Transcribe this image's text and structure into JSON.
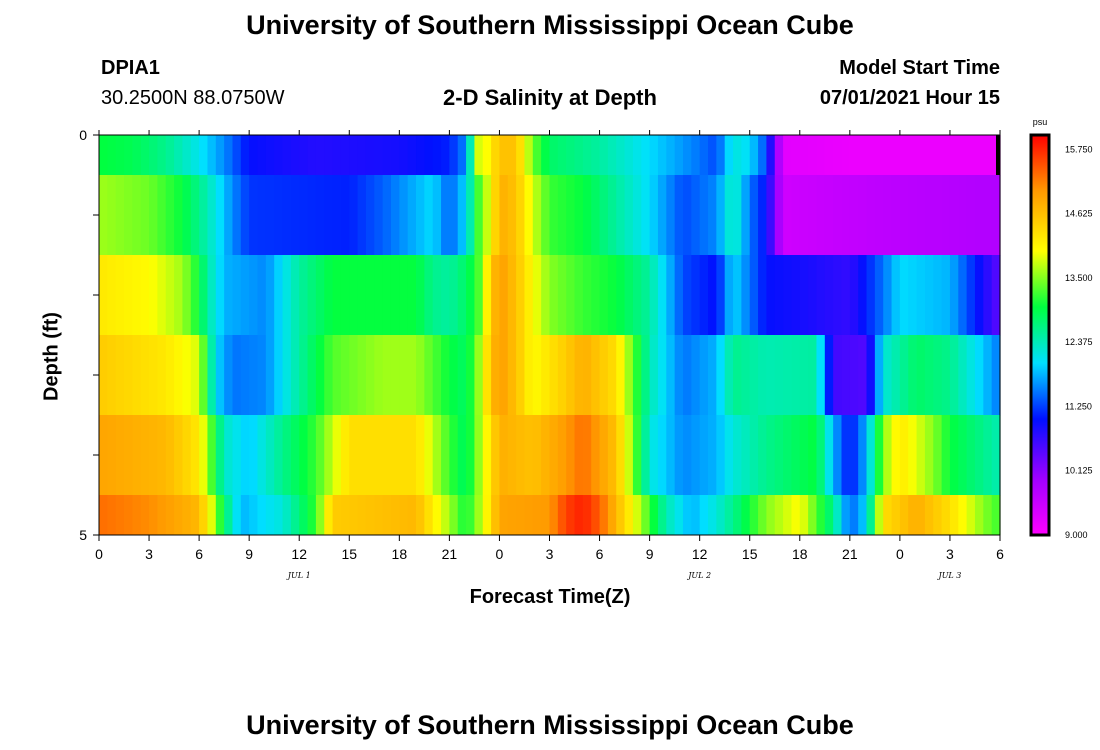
{
  "header": {
    "title": "University of Southern Mississippi Ocean Cube",
    "station": "DPIA1",
    "coords": "30.2500N  88.0750W",
    "subtitle": "2-D Salinity at Depth",
    "model_label": "Model Start Time",
    "model_time": "07/01/2021 Hour 15"
  },
  "footer": {
    "title": "University of Southern Mississippi Ocean Cube"
  },
  "chart_data": {
    "type": "heatmap",
    "title": "2-D Salinity at Depth",
    "xlabel": "Forecast Time(Z)",
    "ylabel": "Depth (ft)",
    "ylim": [
      0,
      5
    ],
    "y_ticks": [
      "0",
      "5"
    ],
    "x_hours_range": [
      0,
      54
    ],
    "x_ticks": [
      "0",
      "3",
      "6",
      "9",
      "12",
      "15",
      "18",
      "21",
      "0",
      "3",
      "6",
      "9",
      "12",
      "15",
      "18",
      "21",
      "0",
      "3",
      "6"
    ],
    "month_labels": [
      {
        "label": "JUL 1",
        "hour": 12
      },
      {
        "label": "JUL 2",
        "hour": 36
      },
      {
        "label": "JUL 3",
        "hour": 51
      }
    ],
    "colorbar": {
      "unit": "psu",
      "min": 9.0,
      "max": 16.0,
      "ticks": [
        "15.750",
        "14.625",
        "13.500",
        "12.375",
        "11.250",
        "10.125",
        "9.000"
      ]
    },
    "depth_layers": [
      0.5,
      1.5,
      2.5,
      3.5,
      4.5
    ],
    "rows": [
      {
        "depth": 0.25,
        "points": [
          [
            0,
            13.0
          ],
          [
            2,
            12.9
          ],
          [
            4,
            12.6
          ],
          [
            6,
            12.1
          ],
          [
            7.5,
            11.6
          ],
          [
            9,
            11.0
          ],
          [
            13,
            10.8
          ],
          [
            18,
            10.9
          ],
          [
            21,
            11.1
          ],
          [
            22,
            11.6
          ],
          [
            22.7,
            13.8
          ],
          [
            23.3,
            14.0
          ],
          [
            24,
            14.6
          ],
          [
            25,
            14.6
          ],
          [
            26,
            13.4
          ],
          [
            27,
            12.8
          ],
          [
            30,
            12.5
          ],
          [
            33,
            12.0
          ],
          [
            36,
            11.5
          ],
          [
            37,
            11.3
          ],
          [
            38,
            12.2
          ],
          [
            39,
            12.0
          ],
          [
            40,
            11.3
          ],
          [
            41,
            9.3
          ],
          [
            45,
            9.2
          ],
          [
            50,
            9.2
          ],
          [
            54,
            9.2
          ]
        ]
      },
      {
        "depth": 1.0,
        "points": [
          [
            0,
            13.6
          ],
          [
            3,
            13.4
          ],
          [
            5,
            13.0
          ],
          [
            6.5,
            12.4
          ],
          [
            8,
            11.6
          ],
          [
            9,
            11.2
          ],
          [
            15,
            11.1
          ],
          [
            17,
            11.4
          ],
          [
            20,
            12.0
          ],
          [
            21,
            11.4
          ],
          [
            22,
            12.0
          ],
          [
            22.7,
            13.2
          ],
          [
            23.5,
            14.0
          ],
          [
            24,
            14.8
          ],
          [
            25,
            14.6
          ],
          [
            26,
            13.8
          ],
          [
            27,
            13.2
          ],
          [
            29,
            13.0
          ],
          [
            31,
            12.5
          ],
          [
            33,
            12.0
          ],
          [
            35,
            11.3
          ],
          [
            37,
            11.6
          ],
          [
            38,
            12.4
          ],
          [
            39,
            11.5
          ],
          [
            40,
            11.0
          ],
          [
            41,
            9.5
          ],
          [
            44,
            9.6
          ],
          [
            48,
            9.7
          ],
          [
            54,
            9.8
          ]
        ]
      },
      {
        "depth": 2.0,
        "points": [
          [
            0,
            14.2
          ],
          [
            3,
            14.0
          ],
          [
            5,
            13.6
          ],
          [
            6,
            13.0
          ],
          [
            6.5,
            12.5
          ],
          [
            7.5,
            11.8
          ],
          [
            10,
            11.6
          ],
          [
            12,
            12.5
          ],
          [
            14,
            13.0
          ],
          [
            19,
            13.0
          ],
          [
            20,
            12.6
          ],
          [
            21,
            12.5
          ],
          [
            22,
            12.8
          ],
          [
            22.7,
            13.2
          ],
          [
            23.5,
            14.5
          ],
          [
            24,
            15.0
          ],
          [
            25,
            14.6
          ],
          [
            26,
            14.0
          ],
          [
            27,
            13.5
          ],
          [
            29,
            13.2
          ],
          [
            31,
            13.0
          ],
          [
            33,
            12.5
          ],
          [
            35,
            11.3
          ],
          [
            37,
            11.0
          ],
          [
            38,
            12.0
          ],
          [
            39,
            11.5
          ],
          [
            40,
            11.0
          ],
          [
            42,
            10.9
          ],
          [
            45,
            10.7
          ],
          [
            47,
            11.5
          ],
          [
            48,
            12.0
          ],
          [
            51,
            11.8
          ],
          [
            54,
            10.4
          ]
        ]
      },
      {
        "depth": 3.0,
        "points": [
          [
            0,
            14.5
          ],
          [
            4,
            14.2
          ],
          [
            6,
            13.8
          ],
          [
            7,
            12.0
          ],
          [
            8,
            11.5
          ],
          [
            10,
            11.6
          ],
          [
            12,
            12.5
          ],
          [
            14,
            13.3
          ],
          [
            17,
            13.6
          ],
          [
            19,
            13.6
          ],
          [
            21,
            13.0
          ],
          [
            22,
            12.8
          ],
          [
            22.7,
            13.5
          ],
          [
            23.5,
            14.6
          ],
          [
            24,
            15.0
          ],
          [
            25,
            14.6
          ],
          [
            26,
            14.0
          ],
          [
            28,
            14.5
          ],
          [
            29,
            14.8
          ],
          [
            31,
            14.3
          ],
          [
            33,
            12.4
          ],
          [
            35,
            11.5
          ],
          [
            37,
            11.8
          ],
          [
            38,
            12.6
          ],
          [
            40,
            12.4
          ],
          [
            43,
            12.5
          ],
          [
            44,
            10.6
          ],
          [
            46,
            10.5
          ],
          [
            47,
            12.2
          ],
          [
            49,
            12.8
          ],
          [
            51,
            12.6
          ],
          [
            53,
            11.9
          ],
          [
            54,
            11.5
          ]
        ]
      },
      {
        "depth": 4.0,
        "points": [
          [
            0,
            14.9
          ],
          [
            4,
            14.7
          ],
          [
            6,
            14.2
          ],
          [
            6.8,
            13.2
          ],
          [
            7.5,
            12.3
          ],
          [
            9,
            11.9
          ],
          [
            11,
            12.6
          ],
          [
            13,
            13.2
          ],
          [
            15,
            14.3
          ],
          [
            19,
            14.3
          ],
          [
            21,
            13.2
          ],
          [
            22,
            12.8
          ],
          [
            23,
            13.8
          ],
          [
            24,
            14.8
          ],
          [
            26,
            14.6
          ],
          [
            28,
            15.0
          ],
          [
            29,
            15.3
          ],
          [
            31,
            14.6
          ],
          [
            32,
            13.5
          ],
          [
            33,
            12.2
          ],
          [
            35,
            11.6
          ],
          [
            37,
            11.8
          ],
          [
            38,
            12.2
          ],
          [
            40,
            12.6
          ],
          [
            43,
            13.0
          ],
          [
            44,
            11.8
          ],
          [
            45,
            11.0
          ],
          [
            46,
            11.8
          ],
          [
            47,
            13.5
          ],
          [
            48,
            14.2
          ],
          [
            50,
            13.5
          ],
          [
            51,
            13.0
          ],
          [
            53,
            12.6
          ],
          [
            54,
            12.4
          ]
        ]
      },
      {
        "depth": 4.75,
        "points": [
          [
            0,
            15.3
          ],
          [
            3,
            15.1
          ],
          [
            6,
            14.7
          ],
          [
            6.8,
            13.8
          ],
          [
            7.5,
            12.8
          ],
          [
            8.5,
            11.8
          ],
          [
            11,
            12.2
          ],
          [
            13,
            13.2
          ],
          [
            14,
            14.5
          ],
          [
            19,
            14.7
          ],
          [
            21,
            13.6
          ],
          [
            22,
            13.0
          ],
          [
            23,
            13.8
          ],
          [
            24,
            14.9
          ],
          [
            27,
            15.0
          ],
          [
            28,
            15.6
          ],
          [
            29,
            15.8
          ],
          [
            30,
            15.4
          ],
          [
            32,
            14.0
          ],
          [
            34,
            12.4
          ],
          [
            35.5,
            11.8
          ],
          [
            37,
            12.2
          ],
          [
            38,
            12.6
          ],
          [
            40,
            13.5
          ],
          [
            42,
            14.0
          ],
          [
            44,
            12.6
          ],
          [
            45,
            11.4
          ],
          [
            46,
            12.0
          ],
          [
            47,
            14.3
          ],
          [
            49,
            14.8
          ],
          [
            51,
            14.3
          ],
          [
            53,
            13.5
          ],
          [
            54,
            13.2
          ]
        ]
      }
    ]
  }
}
